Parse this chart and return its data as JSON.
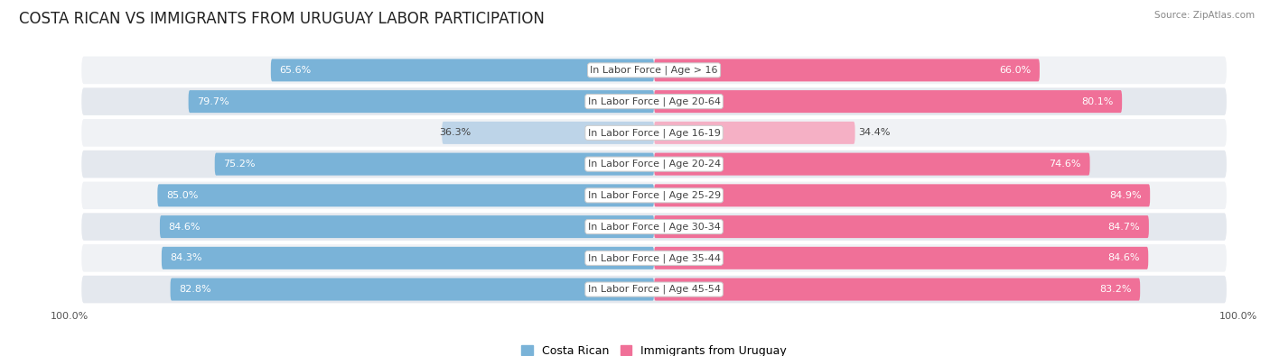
{
  "title": "COSTA RICAN VS IMMIGRANTS FROM URUGUAY LABOR PARTICIPATION",
  "source": "Source: ZipAtlas.com",
  "categories": [
    "In Labor Force | Age > 16",
    "In Labor Force | Age 20-64",
    "In Labor Force | Age 16-19",
    "In Labor Force | Age 20-24",
    "In Labor Force | Age 25-29",
    "In Labor Force | Age 30-34",
    "In Labor Force | Age 35-44",
    "In Labor Force | Age 45-54"
  ],
  "costa_rican": [
    65.6,
    79.7,
    36.3,
    75.2,
    85.0,
    84.6,
    84.3,
    82.8
  ],
  "immigrants": [
    66.0,
    80.1,
    34.4,
    74.6,
    84.9,
    84.7,
    84.6,
    83.2
  ],
  "costa_rican_color": "#7ab3d8",
  "costa_rican_light_color": "#bdd4e8",
  "immigrants_color": "#f07098",
  "immigrants_light_color": "#f5b0c5",
  "row_bg_odd": "#f0f2f5",
  "row_bg_even": "#e4e8ee",
  "max_val": 100.0,
  "bar_height": 0.72,
  "title_fontsize": 12,
  "label_fontsize": 8,
  "value_fontsize": 8,
  "legend_fontsize": 9,
  "axis_label_fontsize": 8
}
